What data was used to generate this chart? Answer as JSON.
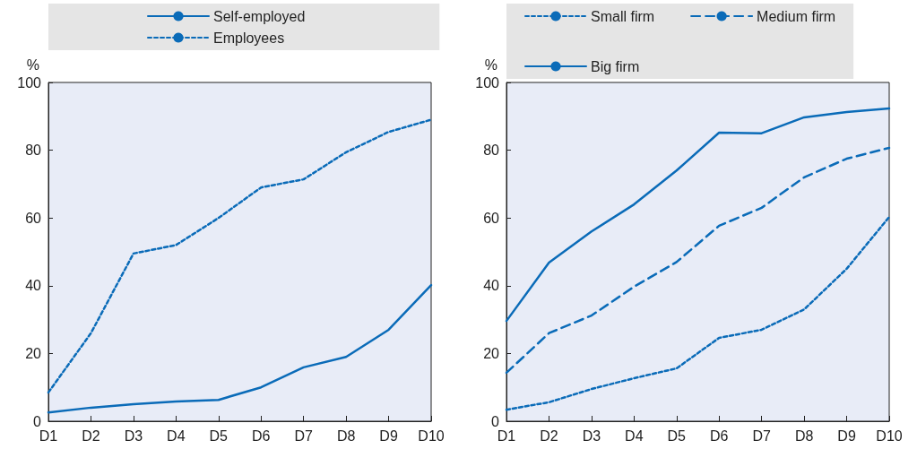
{
  "chart_data": [
    {
      "type": "line",
      "ylabel": "%",
      "categories": [
        "D1",
        "D2",
        "D3",
        "D4",
        "D5",
        "D6",
        "D7",
        "D8",
        "D9",
        "D10"
      ],
      "ylim": [
        0,
        100
      ],
      "yticks": [
        0,
        20,
        40,
        60,
        80,
        100
      ],
      "grid": false,
      "legend": "top",
      "marker": "none",
      "series": [
        {
          "name": "Self-employed",
          "color": "#0a6bb8",
          "line_style": "solid",
          "values": [
            2.6,
            4,
            5,
            5.8,
            6.3,
            10,
            15.9,
            19,
            27,
            40.2
          ]
        },
        {
          "name": "Employees",
          "color": "#0a6bb8",
          "line_style": "dotted",
          "values": [
            8.5,
            26,
            49.5,
            52,
            60,
            69,
            71.4,
            79.4,
            85.4,
            89
          ]
        }
      ]
    },
    {
      "type": "line",
      "ylabel": "%",
      "categories": [
        "D1",
        "D2",
        "D3",
        "D4",
        "D5",
        "D6",
        "D7",
        "D8",
        "D9",
        "D10"
      ],
      "ylim": [
        0,
        100
      ],
      "yticks": [
        0,
        20,
        40,
        60,
        80,
        100
      ],
      "grid": false,
      "legend": "top",
      "marker": "none",
      "series": [
        {
          "name": "Small firm",
          "color": "#0a6bb8",
          "line_style": "dotted",
          "values": [
            3.4,
            5.6,
            9.5,
            12.7,
            15.6,
            24.6,
            27,
            33,
            45,
            60.3
          ]
        },
        {
          "name": "Medium firm",
          "color": "#0a6bb8",
          "line_style": "dashed",
          "values": [
            14.3,
            26,
            31.2,
            39.7,
            47,
            57.7,
            63,
            72,
            77.5,
            80.7
          ]
        },
        {
          "name": "Big firm",
          "color": "#0a6bb8",
          "line_style": "solid",
          "values": [
            29.6,
            46.8,
            56,
            64,
            74,
            85.2,
            85,
            89.7,
            91.3,
            92.3
          ]
        }
      ]
    }
  ]
}
